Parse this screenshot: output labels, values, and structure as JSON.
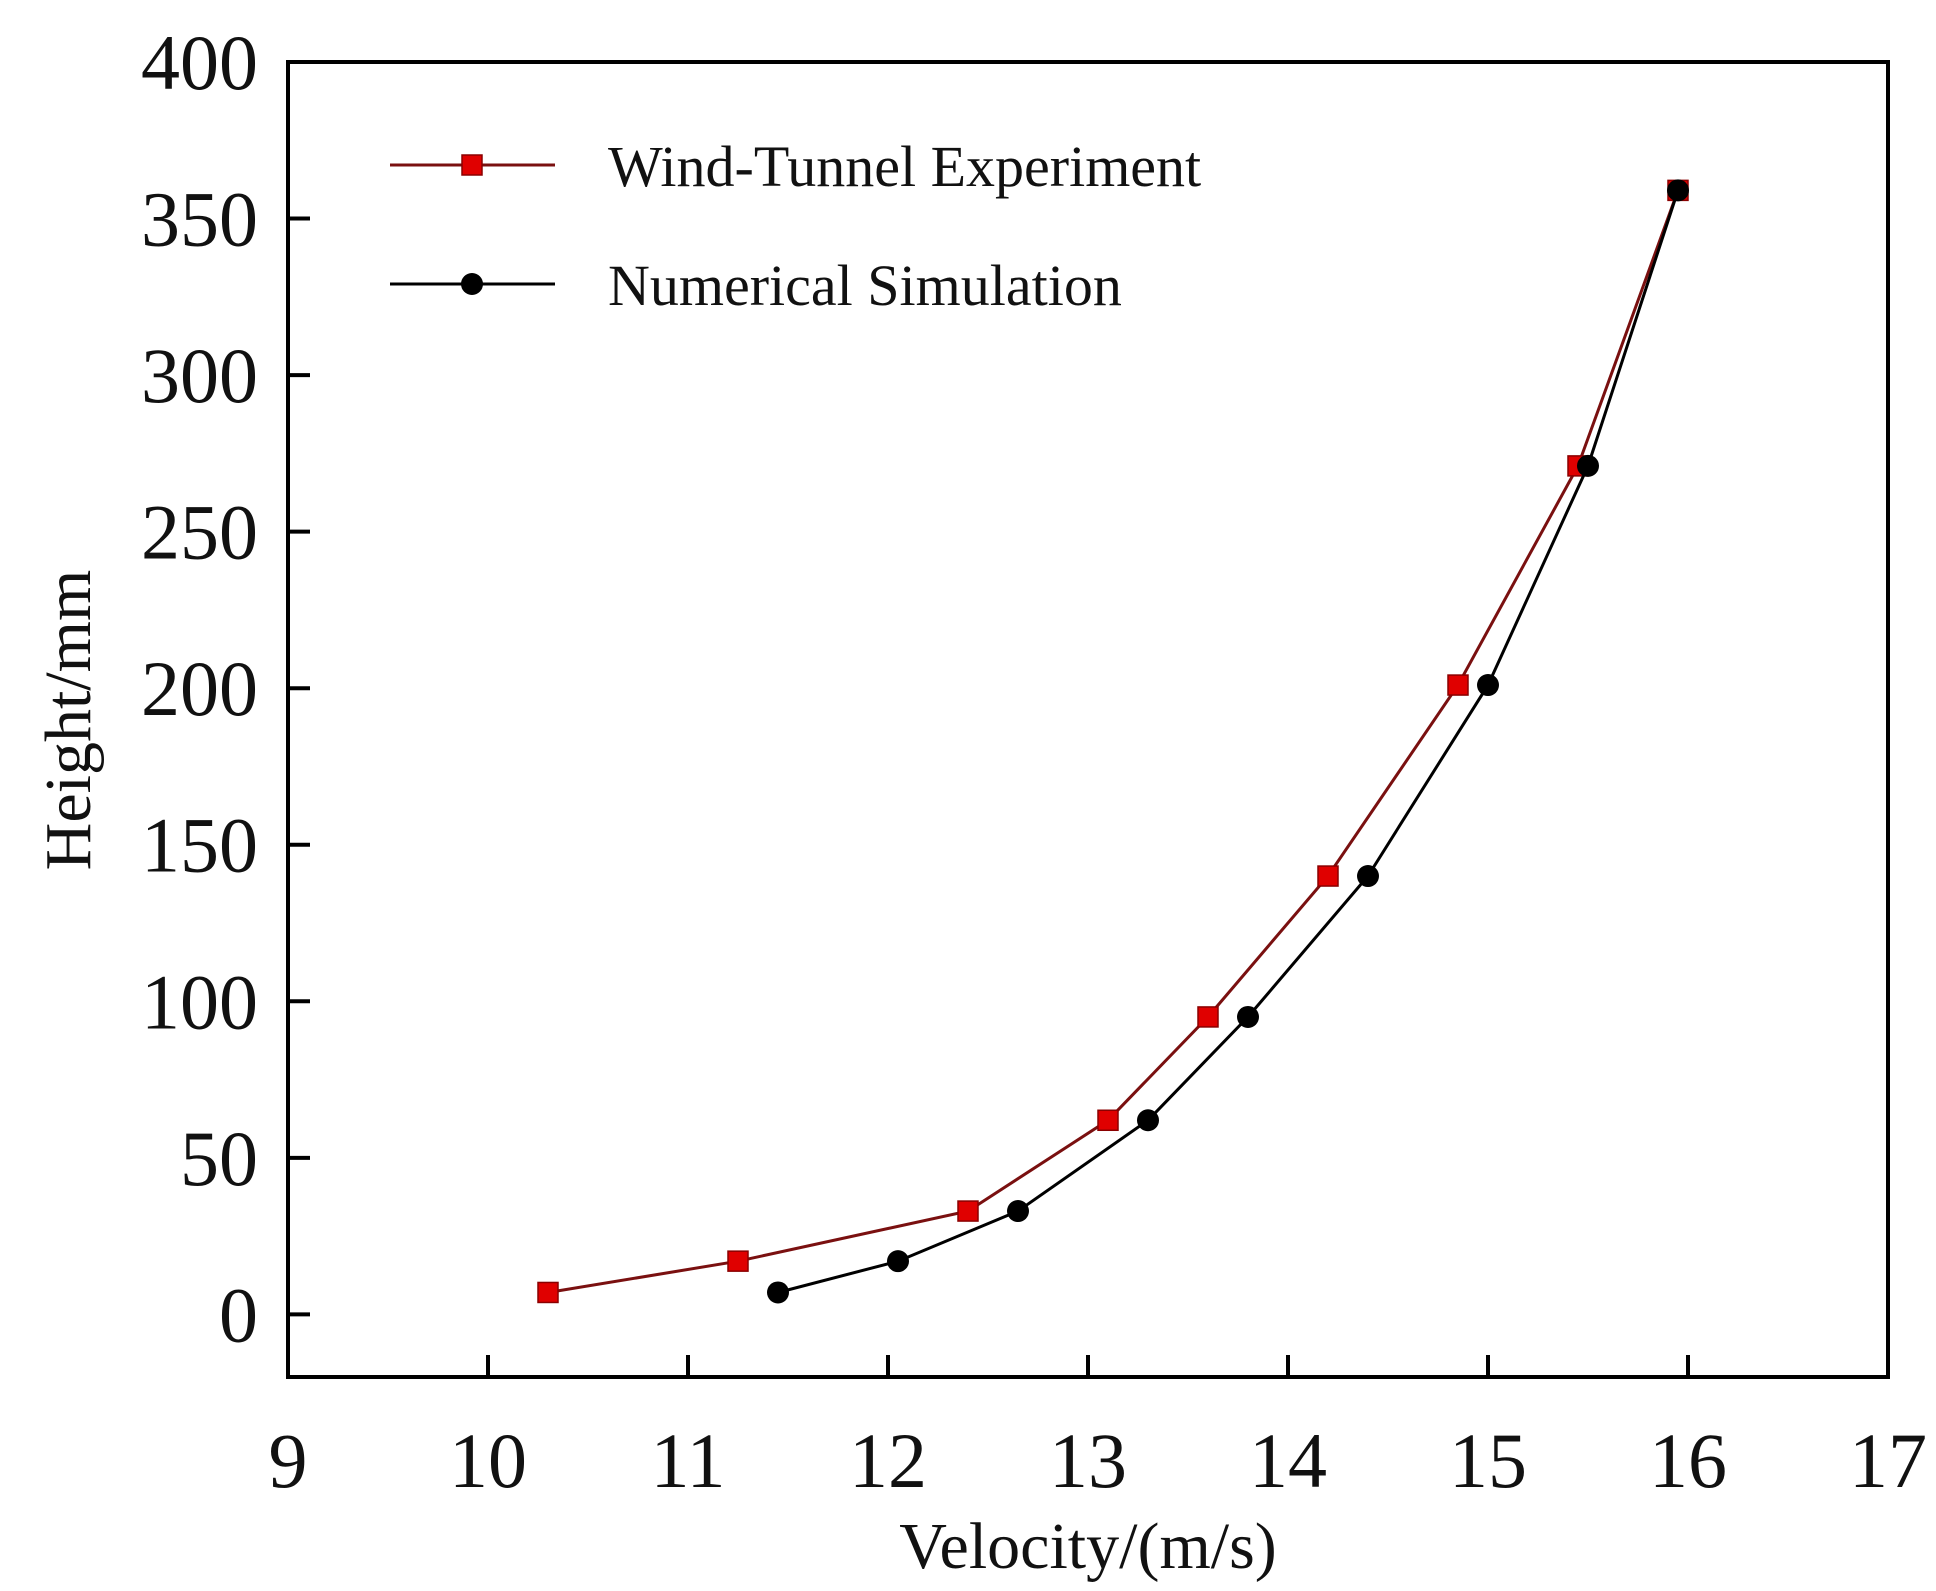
{
  "chart_data": {
    "type": "line",
    "xlabel": "Velocity/(m/s)",
    "ylabel": "Height/mm",
    "xlim": [
      9,
      17
    ],
    "ylim": [
      -20,
      400
    ],
    "x_ticks": [
      "9",
      "10",
      "11",
      "12",
      "13",
      "14",
      "15",
      "16",
      "17"
    ],
    "y_ticks": [
      "0",
      "50",
      "100",
      "150",
      "200",
      "250",
      "300",
      "350",
      "400"
    ],
    "grid": false,
    "legend_position": "top-left",
    "series": [
      {
        "name": "Wind-Tunnel Experiment",
        "marker": "square",
        "line_color": "#7a1010",
        "marker_color": "#e00000",
        "x": [
          10.3,
          11.25,
          12.4,
          13.1,
          13.6,
          14.2,
          14.85,
          15.45,
          15.95
        ],
        "y": [
          7,
          17,
          33,
          62,
          95,
          140,
          201,
          271,
          359
        ]
      },
      {
        "name": "Numerical Simulation",
        "marker": "circle",
        "line_color": "#000000",
        "marker_color": "#000000",
        "x": [
          11.45,
          12.05,
          12.65,
          13.3,
          13.8,
          14.4,
          15.0,
          15.5,
          15.95
        ],
        "y": [
          7,
          17,
          33,
          62,
          95,
          140,
          201,
          271,
          359
        ]
      }
    ]
  }
}
